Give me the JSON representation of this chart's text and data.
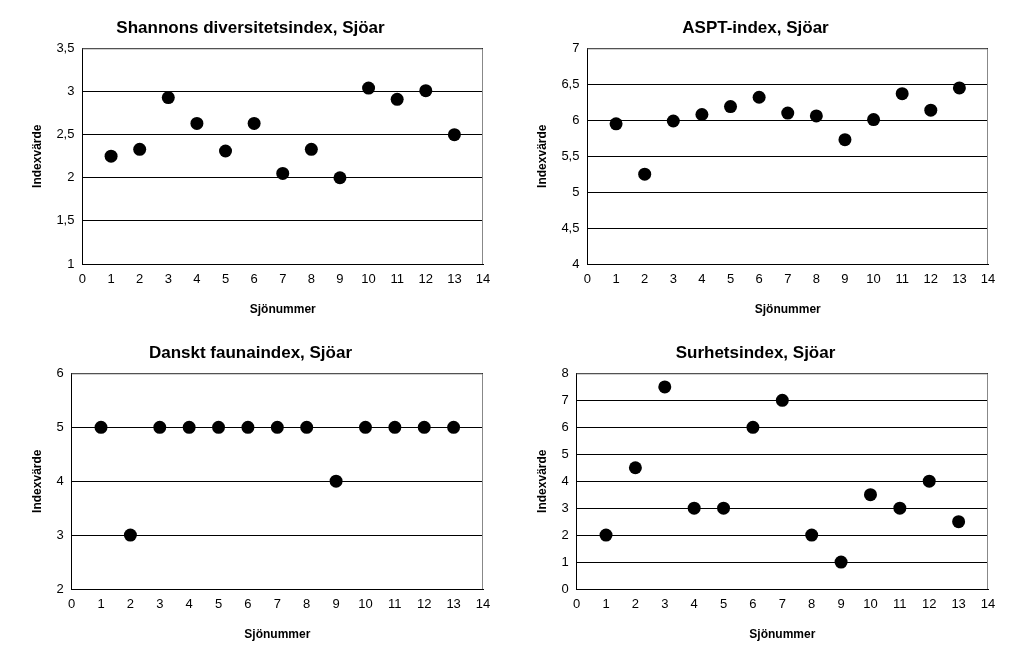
{
  "chart_data": [
    {
      "type": "scatter",
      "title": "Shannons diversitetsindex, Sjöar",
      "xlabel": "Sjönummer",
      "ylabel": "Indexvärde",
      "x": [
        1,
        2,
        3,
        4,
        5,
        6,
        7,
        8,
        9,
        10,
        11,
        12,
        13
      ],
      "series": [
        {
          "color": "#000000",
          "values": [
            2.25,
            2.33,
            2.93,
            2.63,
            2.31,
            2.63,
            2.05,
            2.33,
            2.0,
            3.04,
            2.91,
            3.01,
            2.5
          ]
        }
      ],
      "xlim": [
        0,
        14
      ],
      "xticks": [
        0,
        1,
        2,
        3,
        4,
        5,
        6,
        7,
        8,
        9,
        10,
        11,
        12,
        13,
        14
      ],
      "ylim": [
        1,
        3.5
      ],
      "yticks": [
        1,
        {
          "value": 1.5,
          "label": "1,5"
        },
        2,
        {
          "value": 2.5,
          "label": "2,5"
        },
        3,
        {
          "value": 3.5,
          "label": "3,5"
        }
      ],
      "grid": "y",
      "marker": "circle"
    },
    {
      "type": "scatter",
      "title": "ASPT-index, Sjöar",
      "xlabel": "Sjönummer",
      "ylabel": "Indexvärde",
      "x": [
        1,
        2,
        3,
        4,
        5,
        6,
        7,
        8,
        9,
        10,
        11,
        12,
        13
      ],
      "series": [
        {
          "color": "#000000",
          "values": [
            5.95,
            5.25,
            5.99,
            6.08,
            6.19,
            6.32,
            6.1,
            6.06,
            5.73,
            6.01,
            6.37,
            6.14,
            6.45
          ]
        }
      ],
      "xlim": [
        0,
        14
      ],
      "xticks": [
        0,
        1,
        2,
        3,
        4,
        5,
        6,
        7,
        8,
        9,
        10,
        11,
        12,
        13,
        14
      ],
      "ylim": [
        4,
        7
      ],
      "yticks": [
        4,
        {
          "value": 4.5,
          "label": "4,5"
        },
        5,
        {
          "value": 5.5,
          "label": "5,5"
        },
        6,
        {
          "value": 6.5,
          "label": "6,5"
        },
        7
      ],
      "grid": "y",
      "marker": "circle"
    },
    {
      "type": "scatter",
      "title": "Danskt faunaindex, Sjöar",
      "xlabel": "Sjönummer",
      "ylabel": "Indexvärde",
      "x": [
        1,
        2,
        3,
        4,
        5,
        6,
        7,
        8,
        9,
        10,
        11,
        12,
        13
      ],
      "series": [
        {
          "color": "#000000",
          "values": [
            5,
            3,
            5,
            5,
            5,
            5,
            5,
            5,
            4,
            5,
            5,
            5,
            5
          ]
        }
      ],
      "xlim": [
        0,
        14
      ],
      "xticks": [
        0,
        1,
        2,
        3,
        4,
        5,
        6,
        7,
        8,
        9,
        10,
        11,
        12,
        13,
        14
      ],
      "ylim": [
        2,
        6
      ],
      "yticks": [
        2,
        3,
        4,
        5,
        6
      ],
      "grid": "y",
      "marker": "circle"
    },
    {
      "type": "scatter",
      "title": "Surhetsindex, Sjöar",
      "xlabel": "Sjönummer",
      "ylabel": "Indexvärde",
      "x": [
        1,
        2,
        3,
        4,
        5,
        6,
        7,
        8,
        9,
        10,
        11,
        12,
        13
      ],
      "series": [
        {
          "color": "#000000",
          "values": [
            2,
            4.5,
            7.5,
            3,
            3,
            6,
            7,
            2,
            1,
            3.5,
            3,
            4,
            2.5
          ]
        }
      ],
      "xlim": [
        0,
        14
      ],
      "xticks": [
        0,
        1,
        2,
        3,
        4,
        5,
        6,
        7,
        8,
        9,
        10,
        11,
        12,
        13,
        14
      ],
      "ylim": [
        0,
        8
      ],
      "yticks": [
        0,
        1,
        2,
        3,
        4,
        5,
        6,
        7,
        8
      ],
      "grid": "y",
      "marker": "circle"
    }
  ]
}
